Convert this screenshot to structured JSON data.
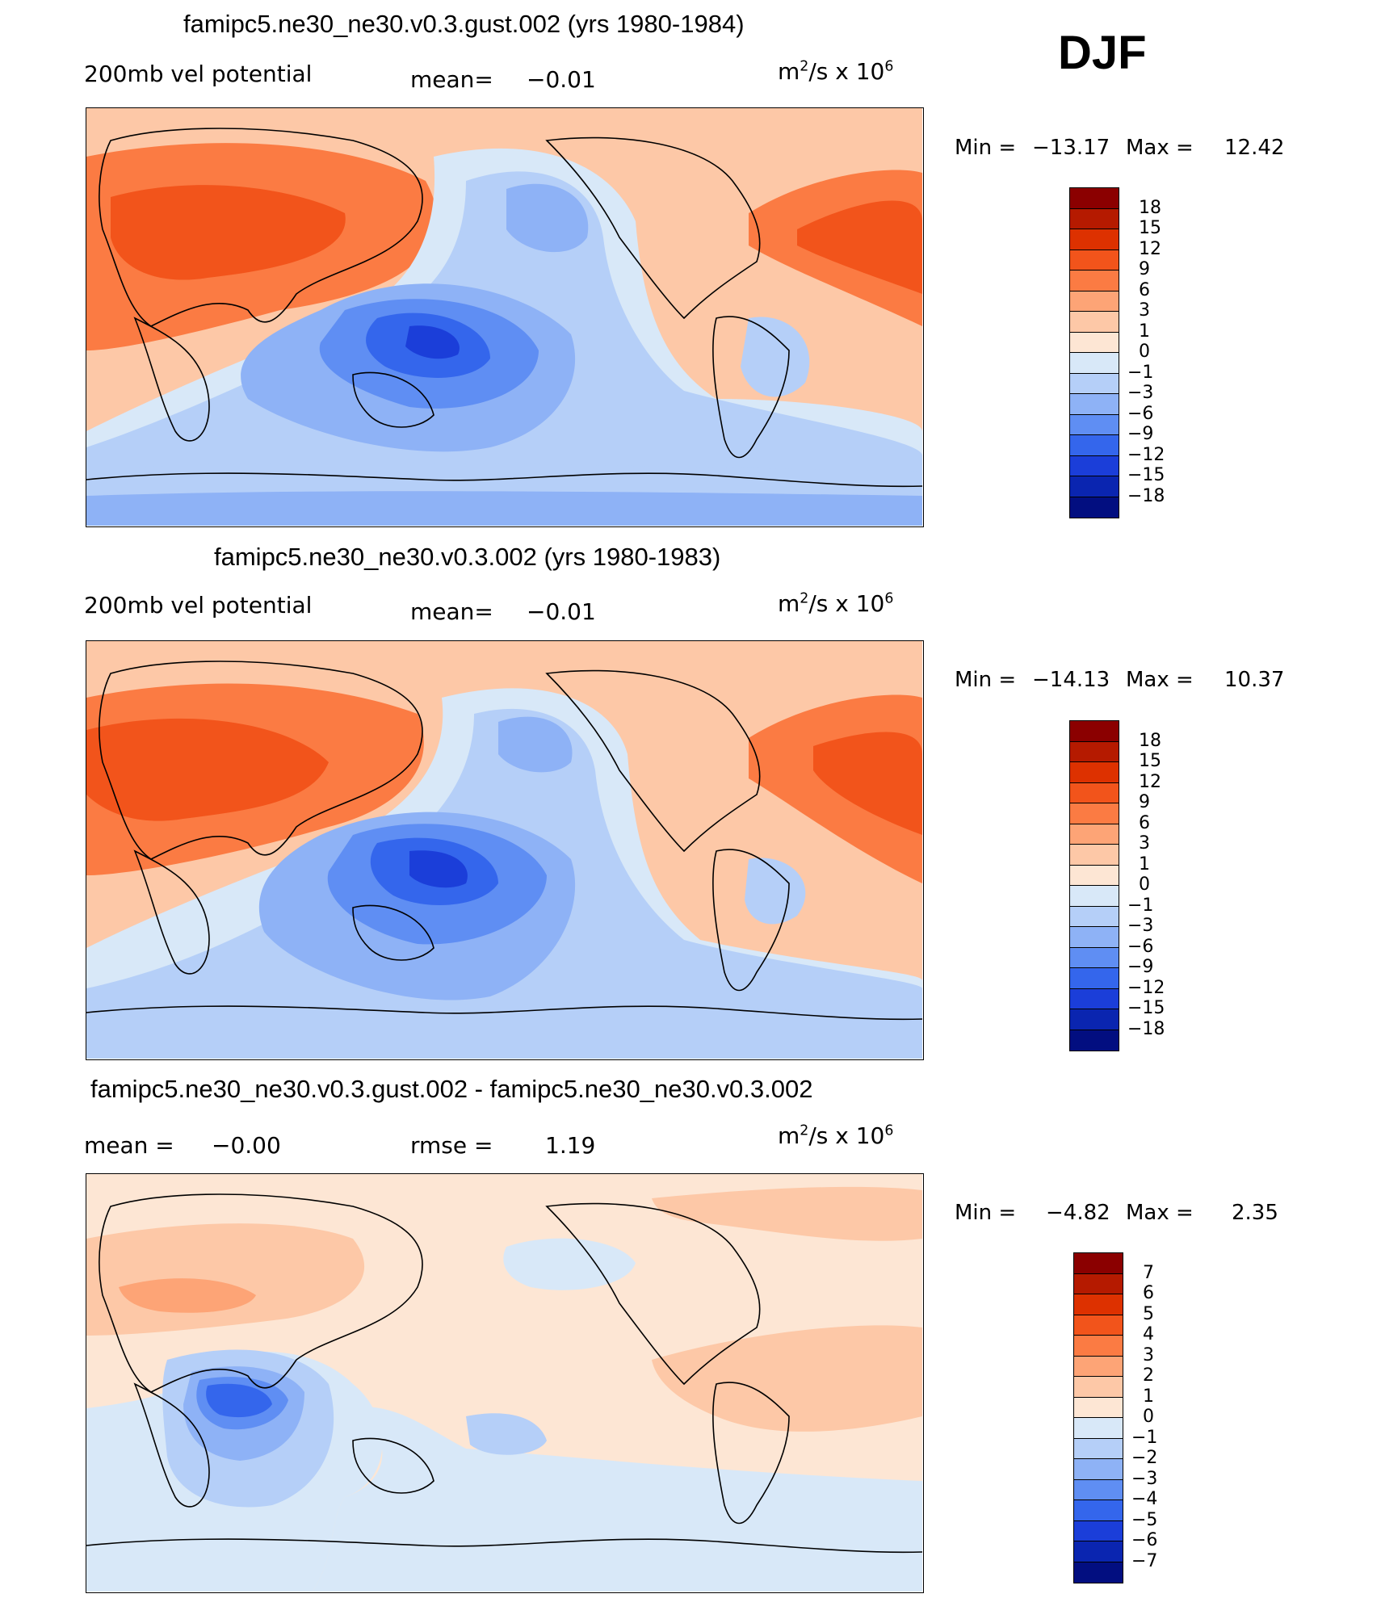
{
  "season": "DJF",
  "panels": [
    {
      "title": "famipc5.ne30_ne30.v0.3.gust.002 (yrs 1980-1984)",
      "left_label": "200mb vel potential",
      "center_label": "mean=",
      "center_value": "−0.01",
      "units": "m²/s x 10⁶",
      "min_label": "Min =",
      "min_value": "−13.17",
      "max_label": "Max =",
      "max_value": "12.42"
    },
    {
      "title": "famipc5.ne30_ne30.v0.3.002 (yrs 1980-1983)",
      "left_label": "200mb vel potential",
      "center_label": "mean=",
      "center_value": "−0.01",
      "units": "m²/s x 10⁶",
      "min_label": "Min =",
      "min_value": "−14.13",
      "max_label": "Max =",
      "max_value": "10.37"
    },
    {
      "title": "famipc5.ne30_ne30.v0.3.gust.002 - famipc5.ne30_ne30.v0.3.002",
      "left_label": "mean =",
      "left_value": "−0.00",
      "center_label": "rmse =",
      "center_value": "1.19",
      "units": "m²/s x 10⁶",
      "min_label": "Min =",
      "min_value": "−4.82",
      "max_label": "Max =",
      "max_value": "2.35"
    }
  ],
  "chart_data": [
    {
      "type": "heatmap",
      "title": "famipc5.ne30_ne30.v0.3.gust.002 (yrs 1980-1984)",
      "variable": "200mb vel potential",
      "units": "m2/s x 10^6",
      "mean": -0.01,
      "min": -13.17,
      "max": 12.42,
      "colorbar_levels": [
        "18",
        "15",
        "12",
        "9",
        "6",
        "3",
        "1",
        "0",
        "−1",
        "−3",
        "−6",
        "−9",
        "−12",
        "−15",
        "−18"
      ],
      "colorbar_colors": [
        "#8b0000",
        "#b51a00",
        "#dd3100",
        "#f2541b",
        "#fb7b43",
        "#fda476",
        "#fdc8a7",
        "#fde6d4",
        "#d8e8f8",
        "#b5cff8",
        "#8eb2f6",
        "#5f8ef3",
        "#3466ec",
        "#1b3ed9",
        "#0a25b0",
        "#020e80"
      ]
    },
    {
      "type": "heatmap",
      "title": "famipc5.ne30_ne30.v0.3.002 (yrs 1980-1983)",
      "variable": "200mb vel potential",
      "units": "m2/s x 10^6",
      "mean": -0.01,
      "min": -14.13,
      "max": 10.37,
      "colorbar_levels": [
        "18",
        "15",
        "12",
        "9",
        "6",
        "3",
        "1",
        "0",
        "−1",
        "−3",
        "−6",
        "−9",
        "−12",
        "−15",
        "−18"
      ],
      "colorbar_colors": [
        "#8b0000",
        "#b51a00",
        "#dd3100",
        "#f2541b",
        "#fb7b43",
        "#fda476",
        "#fdc8a7",
        "#fde6d4",
        "#d8e8f8",
        "#b5cff8",
        "#8eb2f6",
        "#5f8ef3",
        "#3466ec",
        "#1b3ed9",
        "#0a25b0",
        "#020e80"
      ]
    },
    {
      "type": "heatmap",
      "title": "famipc5.ne30_ne30.v0.3.gust.002 - famipc5.ne30_ne30.v0.3.002",
      "units": "m2/s x 10^6",
      "mean": -0.0,
      "rmse": 1.19,
      "min": -4.82,
      "max": 2.35,
      "colorbar_levels": [
        "7",
        "6",
        "5",
        "4",
        "3",
        "2",
        "1",
        "0",
        "−1",
        "−2",
        "−3",
        "−4",
        "−5",
        "−6",
        "−7"
      ],
      "colorbar_colors": [
        "#8b0000",
        "#b51a00",
        "#dd3100",
        "#f2541b",
        "#fb7b43",
        "#fda476",
        "#fdc8a7",
        "#fde6d4",
        "#d8e8f8",
        "#b5cff8",
        "#8eb2f6",
        "#5f8ef3",
        "#3466ec",
        "#1b3ed9",
        "#0a25b0",
        "#020e80"
      ]
    }
  ]
}
